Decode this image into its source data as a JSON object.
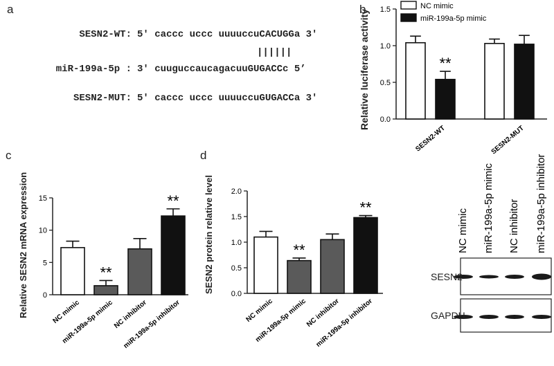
{
  "panel_a": {
    "letter": "a",
    "rows": [
      {
        "name": "SESN2-WT:",
        "seq": "5' caccc uccc uuuuccuCACUGGa 3'"
      },
      {
        "name": "miR-199a-5p :",
        "seq": "3' cuuguccaucagacuuGUGACCc 5’"
      },
      {
        "name": "SESN2-MUT:",
        "seq": "5' caccc uccc uuuuccuGUGACCa 3'"
      }
    ],
    "pairing": "||||||"
  },
  "panel_b": {
    "letter": "b",
    "ylabel": "Relative luciferase activity",
    "legend": [
      "NC mimic",
      "miR-199a-5p mimic"
    ],
    "ticks": [
      "0.0",
      "0.5",
      "1.0",
      "1.5"
    ],
    "xticks": [
      "SESN2-WT",
      "SESN2-MUT"
    ],
    "sig": "**"
  },
  "panel_c": {
    "letter": "c",
    "ylabel": "Relative SESN2 mRNA expression",
    "ticks": [
      "0",
      "5",
      "10",
      "15"
    ],
    "xticks": [
      "NC mimic",
      "miR-199a-5p mimic",
      "NC inhibitor",
      "miR-199a-5p inhibitor"
    ],
    "sig": "**"
  },
  "panel_d": {
    "letter": "d",
    "ylabel": "SESN2 protein relative level",
    "ticks": [
      "0.0",
      "0.5",
      "1.0",
      "1.5",
      "2.0"
    ],
    "xticks": [
      "NC mimic",
      "miR-199a-5p mimic",
      "NC inhibitor",
      "miR-199a-5p inhibitor"
    ],
    "sig": "**"
  },
  "blot": {
    "lanes": [
      "NC mimic",
      "miR-199a-5p mimic",
      "NC inhibitor",
      "miR-199a-5p inhibitor"
    ],
    "rows": [
      "SESN2",
      "GAPDH"
    ]
  },
  "colors": {
    "white": "#ffffff",
    "black": "#111111",
    "gray": "#5a5a5a"
  },
  "chart_data": [
    {
      "type": "bar",
      "title": "",
      "ylabel": "Relative luciferase activity",
      "categories": [
        "SESN2-WT",
        "SESN2-MUT"
      ],
      "series": [
        {
          "name": "NC mimic",
          "values": [
            1.04,
            1.03
          ],
          "errors": [
            0.09,
            0.06
          ]
        },
        {
          "name": "miR-199a-5p mimic",
          "values": [
            0.54,
            1.02
          ],
          "errors": [
            0.11,
            0.12
          ]
        }
      ],
      "significance": [
        "**",
        ""
      ],
      "ylim": [
        0,
        1.5
      ],
      "legend": "top-right"
    },
    {
      "type": "bar",
      "title": "",
      "ylabel": "Relative SESN2 mRNA expression",
      "categories": [
        "NC mimic",
        "miR-199a-5p mimic",
        "NC inhibitor",
        "miR-199a-5p inhibitor"
      ],
      "values": [
        7.3,
        1.4,
        7.1,
        12.2
      ],
      "errors": [
        1.0,
        0.8,
        1.6,
        1.1
      ],
      "significance": [
        "",
        "**",
        "",
        "**"
      ],
      "ylim": [
        0,
        15
      ]
    },
    {
      "type": "bar",
      "title": "",
      "ylabel": "SESN2 protein relative level",
      "categories": [
        "NC mimic",
        "miR-199a-5p mimic",
        "NC inhibitor",
        "miR-199a-5p inhibitor"
      ],
      "values": [
        1.1,
        0.64,
        1.05,
        1.48
      ],
      "errors": [
        0.11,
        0.05,
        0.11,
        0.04
      ],
      "significance": [
        "",
        "**",
        "",
        "**"
      ],
      "ylim": [
        0,
        2.0
      ]
    }
  ]
}
